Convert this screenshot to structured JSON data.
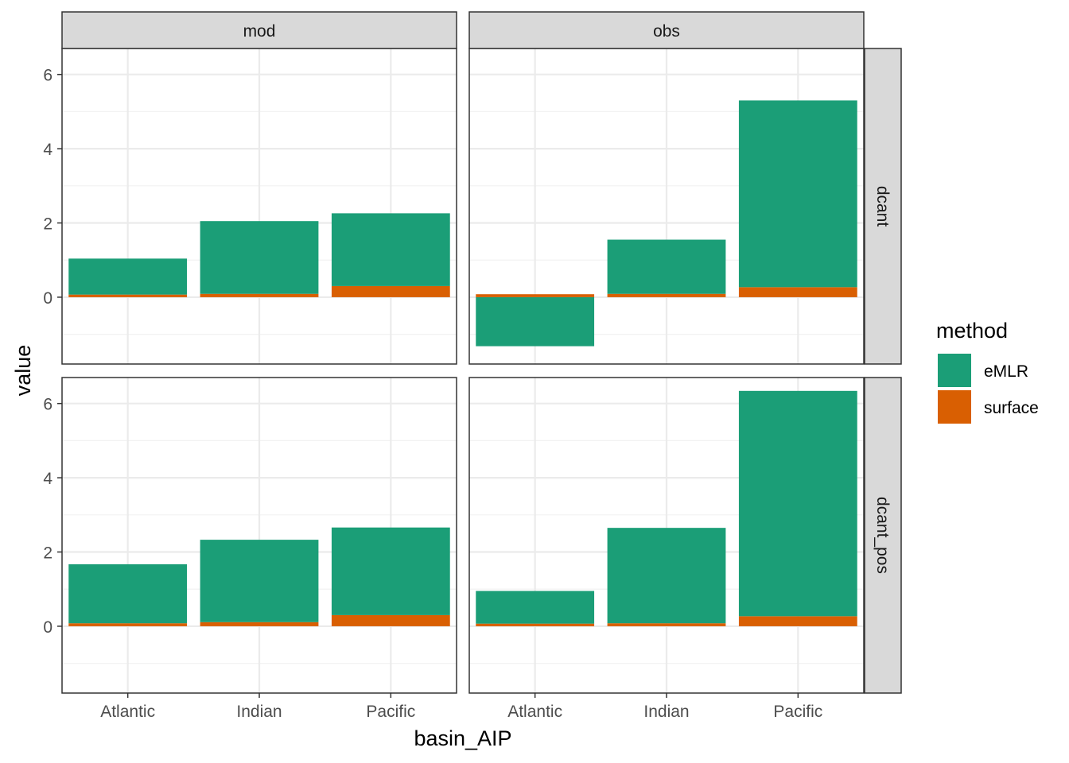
{
  "chart_data": {
    "type": "bar",
    "stacked": true,
    "x_label": "basin_AIP",
    "y_label": "value",
    "categories": [
      "Atlantic",
      "Indian",
      "Pacific"
    ],
    "y_ticks": [
      0,
      2,
      4,
      6
    ],
    "ylim": [
      -1.8,
      6.7
    ],
    "grid": true,
    "facet_columns": [
      "mod",
      "obs"
    ],
    "facet_rows": [
      "dcant",
      "dcant_pos"
    ],
    "legend": {
      "title": "method",
      "position": "right",
      "entries": [
        {
          "name": "eMLR",
          "color": "#1B9E77"
        },
        {
          "name": "surface",
          "color": "#D95F02"
        }
      ]
    },
    "panels": [
      {
        "col": "mod",
        "row": "dcant",
        "series": [
          {
            "name": "eMLR",
            "values": [
              0.97,
              1.96,
              1.96
            ]
          },
          {
            "name": "surface",
            "values": [
              0.07,
              0.09,
              0.3
            ]
          }
        ]
      },
      {
        "col": "obs",
        "row": "dcant",
        "series": [
          {
            "name": "eMLR",
            "values": [
              -1.32,
              1.46,
              5.03
            ]
          },
          {
            "name": "surface",
            "values": [
              0.08,
              0.09,
              0.27
            ]
          }
        ]
      },
      {
        "col": "mod",
        "row": "dcant_pos",
        "series": [
          {
            "name": "eMLR",
            "values": [
              1.59,
              2.22,
              2.36
            ]
          },
          {
            "name": "surface",
            "values": [
              0.08,
              0.11,
              0.3
            ]
          }
        ]
      },
      {
        "col": "obs",
        "row": "dcant_pos",
        "series": [
          {
            "name": "eMLR",
            "values": [
              0.88,
              2.57,
              6.07
            ]
          },
          {
            "name": "surface",
            "values": [
              0.07,
              0.08,
              0.27
            ]
          }
        ]
      }
    ]
  }
}
